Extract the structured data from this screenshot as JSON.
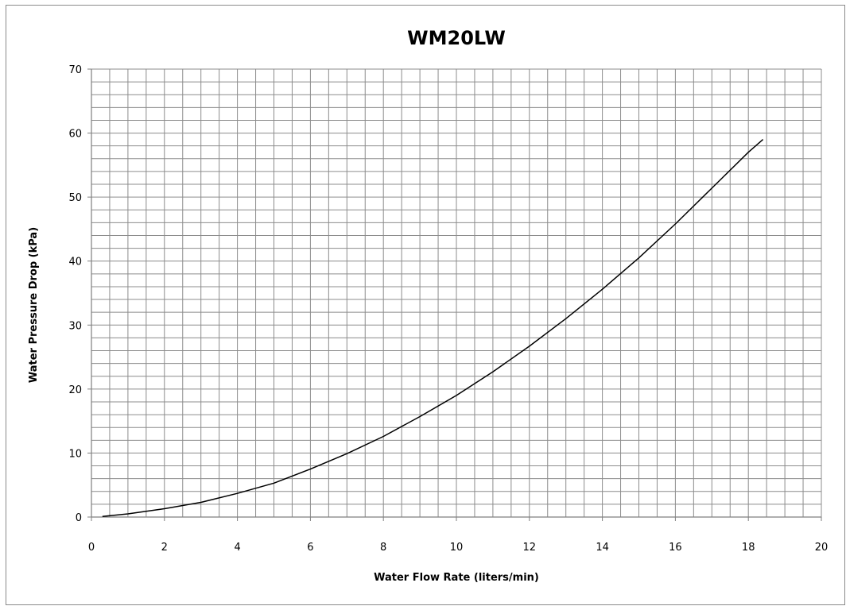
{
  "chart_data": {
    "type": "line",
    "title": "WM20LW",
    "xlabel": "Water Flow Rate (liters/min)",
    "ylabel": "Water Pressure Drop (kPa)",
    "xlim": [
      0,
      20
    ],
    "ylim": [
      0,
      70
    ],
    "xticks": [
      0,
      2,
      4,
      6,
      8,
      10,
      12,
      14,
      16,
      18,
      20
    ],
    "yticks": [
      0,
      10,
      20,
      30,
      40,
      50,
      60,
      70
    ],
    "grid": true,
    "minor_grid_x_step": 0.5,
    "minor_grid_y_step": 2,
    "legend": "none",
    "series": [
      {
        "color": "#000000",
        "x": [
          0.3,
          1,
          2,
          3,
          4,
          5,
          6,
          7,
          8,
          9,
          10,
          11,
          12,
          13,
          14,
          15,
          16,
          17,
          18,
          18.4
        ],
        "y": [
          0.1,
          0.5,
          1.3,
          2.3,
          3.7,
          5.3,
          7.5,
          9.9,
          12.6,
          15.7,
          19.0,
          22.7,
          26.7,
          31.0,
          35.6,
          40.5,
          45.8,
          51.4,
          57.0,
          59.0
        ]
      }
    ]
  }
}
